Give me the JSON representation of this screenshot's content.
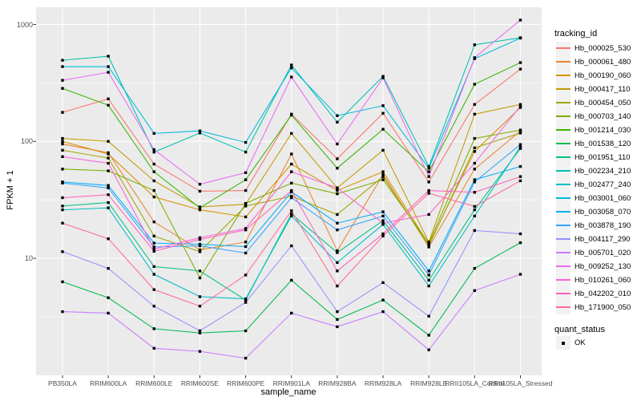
{
  "figure": {
    "y_axis_title": "FPKM + 1",
    "x_axis_title": "sample_name",
    "legend_titles": {
      "tracking": "tracking_id",
      "quant": "quant_status"
    },
    "quant_items": [
      "OK"
    ]
  },
  "style": {
    "panel_bg": "#EBEBEB",
    "grid_color": "#FFFFFF",
    "axis_text_color": "#4D4D4D",
    "tick_mark_color": "#333333",
    "legend_key_bg": "#F2F2F2",
    "point_color": "#000000",
    "background": "#FFFFFF"
  },
  "chart_data": {
    "type": "line",
    "title": "",
    "xlabel": "sample_name",
    "ylabel": "FPKM + 1",
    "y_scale": "log10",
    "ylim": [
      1,
      1400
    ],
    "y_major_ticks": [
      10,
      100,
      1000
    ],
    "y_tick_labels": [
      "10",
      "100",
      "1000"
    ],
    "y_minor_ticks": [
      3.162,
      31.62,
      316.2
    ],
    "grid": true,
    "legend_position": "right",
    "point_style": "small black square at every data point (quant_status = OK)",
    "categories": [
      "PB350LA",
      "RRIM600LA",
      "RRIM600LE",
      "RRIM600SE",
      "RRIM600PE",
      "RRIM901LA",
      "RRIM928BA",
      "RRIM928LA",
      "RRIM928LE",
      "RRII105LA_Control",
      "RRII105LA_Stressed"
    ],
    "series": [
      {
        "name": "Hb_000025_530",
        "color": "#F8766D",
        "values": [
          177,
          231,
          64,
          37.5,
          38,
          171,
          71,
          174,
          45,
          207,
          415
        ]
      },
      {
        "name": "Hb_000061_480",
        "color": "#EA8331",
        "values": [
          95,
          80,
          20.5,
          11.8,
          13.8,
          78,
          11.6,
          52,
          12.5,
          58,
          123
        ]
      },
      {
        "name": "Hb_000190_060",
        "color": "#D89000",
        "values": [
          100,
          78,
          33.5,
          26,
          22.6,
          64,
          38,
          55,
          13.2,
          82,
          195
        ]
      },
      {
        "name": "Hb_000417_110",
        "color": "#C09B00",
        "values": [
          106,
          100,
          46,
          27.5,
          29,
          117,
          40,
          84,
          13.8,
          171,
          207
        ]
      },
      {
        "name": "Hb_000454_050",
        "color": "#A3A500",
        "values": [
          84,
          72,
          15.5,
          11.4,
          28,
          34,
          23.7,
          50,
          12.8,
          88,
          118
        ]
      },
      {
        "name": "Hb_000703_140",
        "color": "#7CAE00",
        "values": [
          58,
          56,
          38,
          6.8,
          29.5,
          44,
          35.6,
          47,
          13.5,
          106,
          125
        ]
      },
      {
        "name": "Hb_001214_030",
        "color": "#39B600",
        "values": [
          284,
          204,
          55,
          27,
          47,
          168,
          59,
          127,
          55,
          308,
          472
        ]
      },
      {
        "name": "Hb_001538_120",
        "color": "#00BB4E",
        "values": [
          6.3,
          4.6,
          2.5,
          2.3,
          2.4,
          6.5,
          3.0,
          4.4,
          2.2,
          8.2,
          13.6
        ]
      },
      {
        "name": "Hb_001951_110",
        "color": "#00C087",
        "values": [
          28,
          30,
          8.5,
          7.8,
          4.4,
          24,
          11.2,
          21,
          6.5,
          26,
          87
        ]
      },
      {
        "name": "Hb_002234_210",
        "color": "#00C0AF",
        "values": [
          494,
          535,
          81,
          118,
          81,
          450,
          146,
          360,
          61,
          670,
          770
        ]
      },
      {
        "name": "Hb_002477_240",
        "color": "#00BFC4",
        "values": [
          26,
          27,
          7.3,
          4.7,
          4.5,
          23,
          9.2,
          19.5,
          5.8,
          23,
          90
        ]
      },
      {
        "name": "Hb_003001_060",
        "color": "#00BAE0",
        "values": [
          436,
          436,
          117,
          123,
          98,
          425,
          166,
          202,
          59,
          510,
          765
        ]
      },
      {
        "name": "Hb_003058_070",
        "color": "#00B0F6",
        "values": [
          45,
          42,
          13.5,
          13.2,
          12.6,
          37,
          20,
          25,
          7.8,
          47,
          61
        ]
      },
      {
        "name": "Hb_003878_190",
        "color": "#35A2FF",
        "values": [
          44,
          40,
          12.5,
          12.8,
          11.1,
          33,
          17.5,
          23,
          7.2,
          45,
          94
        ]
      },
      {
        "name": "Hb_004117_290",
        "color": "#9590FF",
        "values": [
          11.4,
          8.2,
          3.9,
          2.4,
          4.2,
          12.8,
          3.5,
          6.2,
          3.2,
          17.3,
          16.2
        ]
      },
      {
        "name": "Hb_005701_020",
        "color": "#C77CFF",
        "values": [
          3.5,
          3.4,
          1.7,
          1.6,
          1.4,
          3.4,
          2.6,
          3.5,
          1.65,
          5.3,
          7.3
        ]
      },
      {
        "name": "Hb_009252_130",
        "color": "#E76BF3",
        "values": [
          333,
          390,
          85,
          43,
          54,
          355,
          95,
          349,
          50,
          520,
          1090
        ]
      },
      {
        "name": "Hb_010261_060",
        "color": "#FA62DB",
        "values": [
          74,
          65,
          12,
          15,
          18,
          55,
          40,
          20,
          23.7,
          65,
          200
        ]
      },
      {
        "name": "Hb_042202_010",
        "color": "#FF62BC",
        "values": [
          33,
          35,
          11.5,
          14.5,
          17.5,
          38,
          7.8,
          16.2,
          38,
          36.7,
          50
        ]
      },
      {
        "name": "Hb_171900_050",
        "color": "#FF6A98",
        "values": [
          20,
          14.7,
          5.4,
          3.9,
          7.2,
          25.5,
          5.8,
          15.5,
          36,
          27.8,
          46
        ]
      }
    ],
    "quant_status": {
      "title": "quant_status",
      "items": [
        "OK"
      ]
    }
  }
}
